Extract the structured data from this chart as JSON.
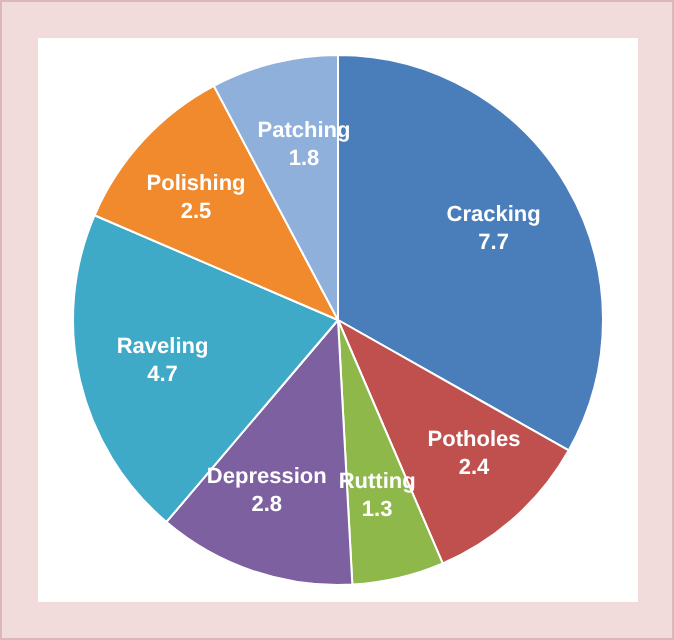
{
  "chart_data": {
    "type": "pie",
    "categories": [
      "Cracking",
      "Potholes",
      "Rutting",
      "Depression",
      "Raveling",
      "Polishing",
      "Patching"
    ],
    "values": [
      7.7,
      2.4,
      1.3,
      2.8,
      4.7,
      2.5,
      1.8
    ],
    "colors": [
      "#4a7ebb",
      "#c0504d",
      "#8fb84a",
      "#7d60a0",
      "#3fa9c8",
      "#f08a2c",
      "#8fb0da"
    ],
    "data_labels": true,
    "legend": false
  }
}
